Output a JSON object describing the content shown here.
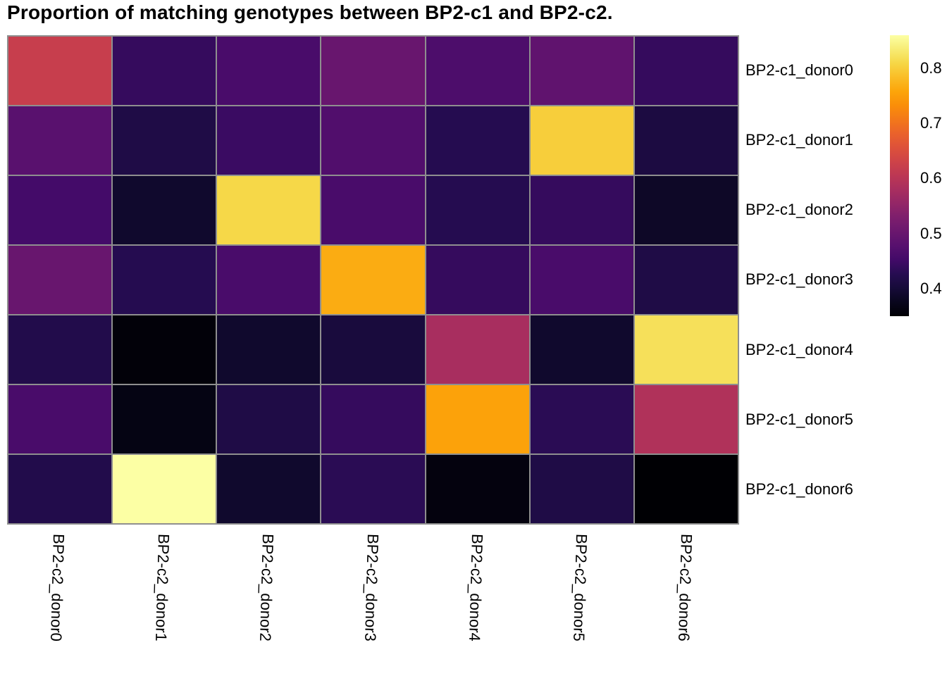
{
  "title": "Proportion of matching genotypes between BP2-c1 and BP2-c2.",
  "chart_data": {
    "type": "heatmap",
    "rows": [
      "BP2-c1_donor0",
      "BP2-c1_donor1",
      "BP2-c1_donor2",
      "BP2-c1_donor3",
      "BP2-c1_donor4",
      "BP2-c1_donor5",
      "BP2-c1_donor6"
    ],
    "columns": [
      "BP2-c2_donor0",
      "BP2-c2_donor1",
      "BP2-c2_donor2",
      "BP2-c2_donor3",
      "BP2-c2_donor4",
      "BP2-c2_donor5",
      "BP2-c2_donor6"
    ],
    "values": [
      [
        0.62,
        0.44,
        0.46,
        0.5,
        0.465,
        0.49,
        0.44
      ],
      [
        0.48,
        0.415,
        0.445,
        0.47,
        0.425,
        0.8,
        0.41
      ],
      [
        0.455,
        0.39,
        0.81,
        0.46,
        0.425,
        0.44,
        0.385
      ],
      [
        0.5,
        0.425,
        0.46,
        0.765,
        0.44,
        0.46,
        0.415
      ],
      [
        0.42,
        0.355,
        0.39,
        0.405,
        0.58,
        0.39,
        0.82
      ],
      [
        0.46,
        0.365,
        0.415,
        0.44,
        0.755,
        0.43,
        0.59
      ],
      [
        0.42,
        0.86,
        0.39,
        0.43,
        0.36,
        0.415,
        0.35
      ]
    ],
    "color_scale": {
      "name": "inferno",
      "domain": [
        0.35,
        0.86
      ],
      "ticks": [
        {
          "label": "0.8",
          "value": 0.8
        },
        {
          "label": "0.7",
          "value": 0.7
        },
        {
          "label": "0.6",
          "value": 0.6
        },
        {
          "label": "0.5",
          "value": 0.5
        },
        {
          "label": "0.4",
          "value": 0.4
        }
      ],
      "stops": [
        [
          0.0,
          "#000004"
        ],
        [
          0.05,
          "#09061d"
        ],
        [
          0.1,
          "#160b39"
        ],
        [
          0.15,
          "#260c51"
        ],
        [
          0.2,
          "#420a68"
        ],
        [
          0.25,
          "#57106e"
        ],
        [
          0.3,
          "#6a176e"
        ],
        [
          0.35,
          "#7d1e6d"
        ],
        [
          0.4,
          "#932667"
        ],
        [
          0.45,
          "#a82e5f"
        ],
        [
          0.5,
          "#bc3754"
        ],
        [
          0.55,
          "#ce4348"
        ],
        [
          0.6,
          "#dd513a"
        ],
        [
          0.65,
          "#ea622b"
        ],
        [
          0.7,
          "#f37819"
        ],
        [
          0.75,
          "#fa8e09"
        ],
        [
          0.8,
          "#fca50a"
        ],
        [
          0.85,
          "#fabd26"
        ],
        [
          0.9,
          "#f6d746"
        ],
        [
          0.95,
          "#f7ec74"
        ],
        [
          1.0,
          "#fcffa4"
        ]
      ]
    },
    "grid_color": "#8f8f8f",
    "background": "#ffffff",
    "legend_position": "right",
    "xlabel": "",
    "ylabel": ""
  }
}
